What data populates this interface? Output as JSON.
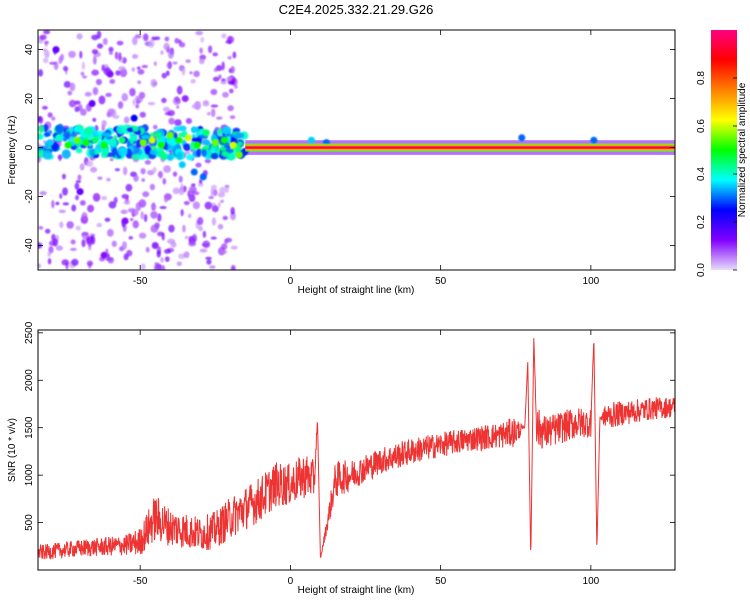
{
  "figure": {
    "title": "C2E4.2025.332.21.29.G26"
  },
  "chart_data": [
    {
      "type": "heatmap",
      "title": "",
      "xlabel": "Height of straight line (km)",
      "ylabel": "Frequency (Hz)",
      "xlim": [
        -84,
        128
      ],
      "ylim": [
        -50,
        48
      ],
      "x_ticks": [
        -50,
        0,
        50,
        100
      ],
      "y_ticks": [
        40,
        20,
        0,
        -20,
        -40
      ],
      "x_tick_labels": [
        "-50",
        "0",
        "50",
        "100"
      ],
      "y_tick_labels": [
        "40",
        "20",
        "0",
        "-20",
        "-40"
      ],
      "grid": false,
      "colorbar": {
        "label": "Normalized spectral amplitude",
        "range": [
          0.0,
          1.0
        ],
        "ticks": [
          0.0,
          0.2,
          0.4,
          0.6,
          0.8
        ],
        "tick_labels": [
          "0.0",
          "0.2",
          "0.4",
          "0.6",
          "0.8"
        ],
        "colormap": [
          "#e8dcf8",
          "#8000ff",
          "#0000ff",
          "#00ffff",
          "#00ff00",
          "#ffff00",
          "#ff8000",
          "#ff0000",
          "#ff0080"
        ]
      },
      "dominant_line": {
        "frequency_hz": 0,
        "x_range": [
          -15,
          128
        ],
        "amplitude": 1.0
      },
      "scattered_blobs": [
        {
          "x": -80,
          "y": 2,
          "v": 0.35
        },
        {
          "x": -77,
          "y": 4,
          "v": 0.4
        },
        {
          "x": -74,
          "y": 1,
          "v": 0.5
        },
        {
          "x": -71,
          "y": 3,
          "v": 0.55
        },
        {
          "x": -68,
          "y": 2,
          "v": 0.5
        },
        {
          "x": -65,
          "y": 3,
          "v": 0.45
        },
        {
          "x": -62,
          "y": 1,
          "v": 0.5
        },
        {
          "x": -59,
          "y": 2,
          "v": 0.4
        },
        {
          "x": -56,
          "y": 3,
          "v": 0.45
        },
        {
          "x": -52,
          "y": 4,
          "v": 0.4
        },
        {
          "x": -49,
          "y": 2,
          "v": 0.55
        },
        {
          "x": -46,
          "y": 3,
          "v": 0.6
        },
        {
          "x": -43,
          "y": 1,
          "v": 0.5
        },
        {
          "x": -40,
          "y": 5,
          "v": 0.55
        },
        {
          "x": -37,
          "y": 3,
          "v": 0.5
        },
        {
          "x": -34,
          "y": 4,
          "v": 0.6
        },
        {
          "x": -31,
          "y": 1,
          "v": 0.5
        },
        {
          "x": -28,
          "y": 6,
          "v": 0.45
        },
        {
          "x": -25,
          "y": 2,
          "v": 0.55
        },
        {
          "x": -22,
          "y": 3,
          "v": 0.5
        },
        {
          "x": -19,
          "y": 1,
          "v": 0.6
        },
        {
          "x": -17,
          "y": -3,
          "v": 0.55
        },
        {
          "x": -40,
          "y": -4,
          "v": 0.35
        },
        {
          "x": -36,
          "y": -7,
          "v": 0.35
        },
        {
          "x": -32,
          "y": -10,
          "v": 0.3
        },
        {
          "x": -29,
          "y": -12,
          "v": 0.3
        },
        {
          "x": -52,
          "y": 12,
          "v": 0.25
        },
        {
          "x": -66,
          "y": 18,
          "v": 0.15
        },
        {
          "x": -60,
          "y": 30,
          "v": 0.12
        },
        {
          "x": -70,
          "y": -18,
          "v": 0.15
        },
        {
          "x": -55,
          "y": -30,
          "v": 0.12
        },
        {
          "x": -78,
          "y": 40,
          "v": 0.15
        },
        {
          "x": -45,
          "y": -40,
          "v": 0.1
        },
        {
          "x": -62,
          "y": -44,
          "v": 0.12
        },
        {
          "x": -35,
          "y": 20,
          "v": 0.1
        },
        {
          "x": -25,
          "y": -25,
          "v": 0.08
        },
        {
          "x": 7,
          "y": 3,
          "v": 0.35
        },
        {
          "x": 12,
          "y": 2,
          "v": 0.3
        },
        {
          "x": 77,
          "y": 4,
          "v": 0.3
        },
        {
          "x": 101,
          "y": 3,
          "v": 0.3
        }
      ]
    },
    {
      "type": "line",
      "title": "",
      "xlabel": "Height of straight line (km)",
      "ylabel": "SNR (10 * v/v)",
      "xlim": [
        -84,
        128
      ],
      "ylim": [
        0,
        2530
      ],
      "x_ticks": [
        -50,
        0,
        50,
        100
      ],
      "y_ticks": [
        500,
        1000,
        1500,
        2000,
        2500
      ],
      "x_tick_labels": [
        "-50",
        "0",
        "50",
        "100"
      ],
      "y_tick_labels": [
        "500",
        "1000",
        "1500",
        "2000",
        "2500"
      ],
      "grid": false,
      "series": [
        {
          "color": "#ee3333",
          "x": [
            -84,
            -70,
            -55,
            -50,
            -45,
            -40,
            -30,
            -25,
            -20,
            -10,
            -5,
            0,
            5,
            8,
            9,
            10,
            15,
            20,
            30,
            40,
            50,
            60,
            70,
            75,
            78,
            79,
            80,
            81,
            82,
            85,
            90,
            95,
            100,
            101,
            102,
            103,
            105,
            110,
            120,
            128
          ],
          "y": [
            180,
            230,
            260,
            300,
            550,
            450,
            380,
            420,
            550,
            750,
            900,
            900,
            1000,
            950,
            1600,
            120,
            950,
            1000,
            1150,
            1250,
            1320,
            1380,
            1420,
            1460,
            1500,
            2200,
            100,
            2450,
            1500,
            1450,
            1500,
            1550,
            1550,
            2450,
            200,
            1600,
            1620,
            1650,
            1700,
            1720
          ],
          "noise": [
            80,
            90,
            110,
            150,
            250,
            200,
            180,
            200,
            220,
            240,
            240,
            220,
            240,
            200,
            0,
            0,
            200,
            160,
            140,
            140,
            130,
            130,
            140,
            160,
            0,
            0,
            0,
            0,
            220,
            180,
            170,
            170,
            150,
            0,
            0,
            0,
            140,
            130,
            120,
            110
          ]
        }
      ]
    }
  ]
}
